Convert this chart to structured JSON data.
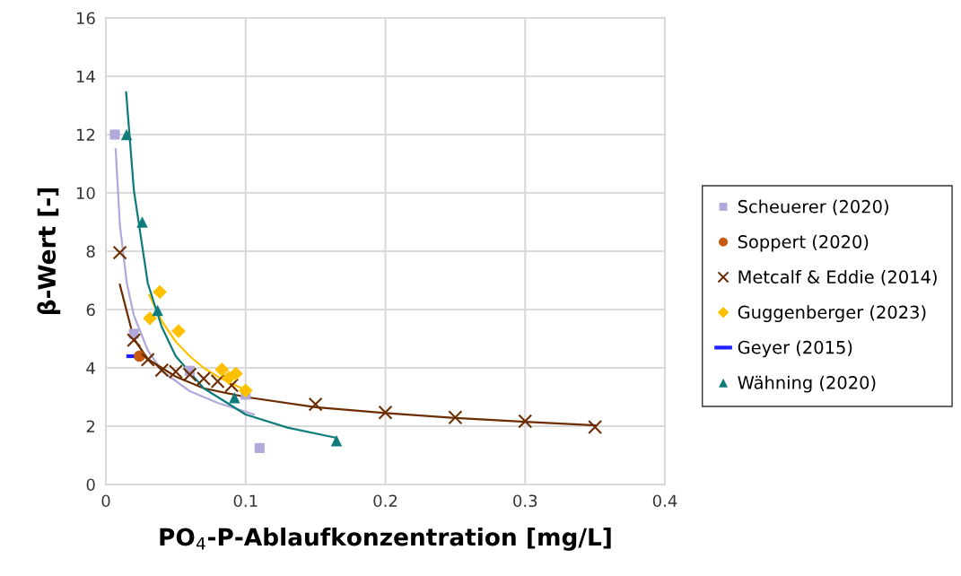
{
  "chart_data": {
    "type": "scatter",
    "xlabel": "PO$_{4}$-P-Ablaufkonzentration [mg/L]",
    "ylabel": "β-Wert [-]",
    "xlim": [
      0,
      0.4
    ],
    "xticks": [
      0,
      0.1,
      0.2,
      0.3,
      0.4
    ],
    "ylim": [
      0,
      16
    ],
    "yticks": [
      0,
      2,
      4,
      6,
      8,
      10,
      12,
      14,
      16
    ],
    "grid": true,
    "legend": "right",
    "series": [
      {
        "name": "Scheuerer (2020)",
        "color": "#b1a9d9",
        "marker": "square",
        "x": [
          0.0064,
          0.02,
          0.06,
          0.1,
          0.11
        ],
        "values": [
          12.0,
          5.17,
          3.9,
          3.08,
          1.25
        ]
      },
      {
        "name": "Soppert (2020)",
        "color": "#c55a11",
        "marker": "circle",
        "x": [
          0.024
        ],
        "values": [
          4.4
        ]
      },
      {
        "name": "Metcalf & Eddie (2014)",
        "color": "#6b2c00",
        "marker": "cross",
        "x": [
          0.01,
          0.02,
          0.03,
          0.04,
          0.05,
          0.06,
          0.07,
          0.08,
          0.09,
          0.15,
          0.2,
          0.25,
          0.3,
          0.35
        ],
        "values": [
          7.95,
          4.95,
          4.28,
          3.92,
          3.87,
          3.77,
          3.63,
          3.54,
          3.4,
          2.75,
          2.47,
          2.3,
          2.17,
          1.97
        ]
      },
      {
        "name": "Guggenberger (2023)",
        "color": "#ffc000",
        "marker": "diamond",
        "x": [
          0.0315,
          0.0386,
          0.052,
          0.083,
          0.088,
          0.093,
          0.1
        ],
        "values": [
          5.7,
          6.6,
          5.26,
          3.94,
          3.66,
          3.8,
          3.22
        ]
      },
      {
        "name": "Geyer (2015)",
        "color": "#1f1fff",
        "type": "line",
        "marker": "none",
        "x": [
          0.016,
          0.024
        ],
        "values": [
          4.4,
          4.4
        ]
      },
      {
        "name": "Wähning (2020)",
        "color": "#0e7c7b",
        "marker": "triangle",
        "x": [
          0.0148,
          0.026,
          0.037,
          0.092,
          0.165
        ],
        "values": [
          12.0,
          9.0,
          5.97,
          2.98,
          1.5
        ]
      },
      {
        "type": "line",
        "color": "#b1a9d9",
        "marker": "none",
        "x": [
          0.007,
          0.01,
          0.015,
          0.02,
          0.03,
          0.04,
          0.06,
          0.08,
          0.106
        ],
        "values": [
          11.5,
          8.9,
          6.9,
          5.8,
          4.6,
          3.9,
          3.2,
          2.8,
          2.4
        ]
      },
      {
        "type": "line",
        "color": "#6b2c00",
        "marker": "none",
        "x": [
          0.01,
          0.02,
          0.03,
          0.05,
          0.07,
          0.1,
          0.15,
          0.2,
          0.25,
          0.3,
          0.35
        ],
        "values": [
          6.85,
          5.0,
          4.3,
          3.7,
          3.3,
          3.0,
          2.65,
          2.45,
          2.28,
          2.15,
          2.03
        ]
      },
      {
        "type": "line",
        "color": "#ffc000",
        "marker": "none",
        "x": [
          0.031,
          0.04,
          0.05,
          0.06,
          0.07,
          0.08,
          0.09,
          0.1
        ],
        "values": [
          6.5,
          5.6,
          4.9,
          4.4,
          4.0,
          3.7,
          3.45,
          3.25
        ]
      },
      {
        "type": "line",
        "color": "#0e7c7b",
        "marker": "none",
        "x": [
          0.0145,
          0.02,
          0.03,
          0.04,
          0.05,
          0.07,
          0.1,
          0.13,
          0.165
        ],
        "values": [
          13.45,
          10.1,
          6.9,
          5.4,
          4.4,
          3.3,
          2.4,
          1.95,
          1.6
        ]
      }
    ]
  }
}
